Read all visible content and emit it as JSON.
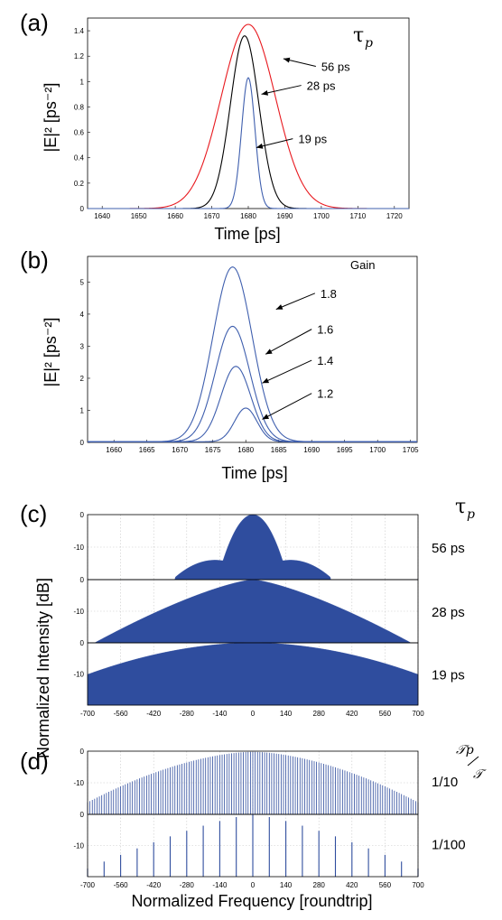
{
  "figure": {
    "colors": {
      "line_blue": "#3f5fae",
      "line_black": "#000000",
      "line_red": "#e8191f",
      "fill_blue": "#2f4d9e"
    },
    "tau_symbol": "τ",
    "tau_sub": "p",
    "ratio_num": "𝒯p",
    "ratio_den": "𝒯",
    "shared_ylabel": "Normalized Intensity [dB]"
  },
  "chart_data": [
    {
      "id": "a",
      "panel_label": "(a)",
      "type": "line",
      "xlabel": "Time [ps]",
      "ylabel": "|E|² [ps⁻²]",
      "xlim": [
        1636,
        1724
      ],
      "ylim": [
        0,
        1.5
      ],
      "xticks": [
        1640,
        1650,
        1660,
        1670,
        1680,
        1690,
        1700,
        1710,
        1720
      ],
      "yticks": [
        0,
        0.2,
        0.4,
        0.6,
        0.8,
        1,
        1.2,
        1.4
      ],
      "legend_title": "τp",
      "series": [
        {
          "name": "56 ps",
          "color": "#e8191f",
          "peak_x": 1680,
          "peak_y": 1.45,
          "width": 10.5
        },
        {
          "name": "28 ps",
          "color": "#000000",
          "peak_x": 1679,
          "peak_y": 1.36,
          "width": 5.5
        },
        {
          "name": "19 ps",
          "color": "#3f5fae",
          "peak_x": 1680,
          "peak_y": 1.03,
          "width": 2.6
        }
      ]
    },
    {
      "id": "b",
      "panel_label": "(b)",
      "type": "line",
      "xlabel": "Time [ps]",
      "ylabel": "|E|² [ps⁻²]",
      "xlim": [
        1656,
        1706
      ],
      "ylim": [
        0,
        5.8
      ],
      "xticks": [
        1660,
        1665,
        1670,
        1675,
        1680,
        1685,
        1690,
        1695,
        1700,
        1705
      ],
      "yticks": [
        0,
        1,
        2,
        3,
        4,
        5
      ],
      "legend_title": "Gain",
      "series": [
        {
          "name": "1.8",
          "peak_x": 1678,
          "peak_y": 5.45,
          "width": 4.2
        },
        {
          "name": "1.6",
          "peak_x": 1678,
          "peak_y": 3.6,
          "width": 3.7
        },
        {
          "name": "1.4",
          "peak_x": 1678.5,
          "peak_y": 2.35,
          "width": 3.2
        },
        {
          "name": "1.2",
          "peak_x": 1680,
          "peak_y": 1.05,
          "width": 2.4
        }
      ]
    },
    {
      "id": "c",
      "panel_label": "(c)",
      "type": "area",
      "xlabel": "",
      "ylabel": "Normalized Intensity [dB]",
      "xlim": [
        -700,
        700
      ],
      "ylim": [
        -20,
        0
      ],
      "xticks": [
        -700,
        -560,
        -420,
        -280,
        -140,
        0,
        140,
        280,
        420,
        560,
        700
      ],
      "yticks": [
        0,
        -10
      ],
      "legend_title": "τp",
      "series": [
        {
          "name": "56 ps",
          "half_width": 330
        },
        {
          "name": "28 ps",
          "half_width": 670
        },
        {
          "name": "19 ps",
          "half_width": 1000
        }
      ]
    },
    {
      "id": "d",
      "panel_label": "(d)",
      "type": "bar",
      "xlabel": "Normalized Frequency [roundtrip]",
      "ylabel": "Normalized Intensity [dB]",
      "xlim": [
        -700,
        700
      ],
      "ylim": [
        -20,
        0
      ],
      "xticks": [
        -700,
        -560,
        -420,
        -280,
        -140,
        0,
        140,
        280,
        420,
        560,
        700
      ],
      "yticks": [
        0,
        -10
      ],
      "legend_title": "𝒯p/𝒯",
      "series": [
        {
          "name": "1/10",
          "spacing": 10,
          "decay_per_100": 1.55
        },
        {
          "name": "1/100",
          "spacing": 70,
          "decay_per_100": 2.2
        }
      ]
    }
  ]
}
